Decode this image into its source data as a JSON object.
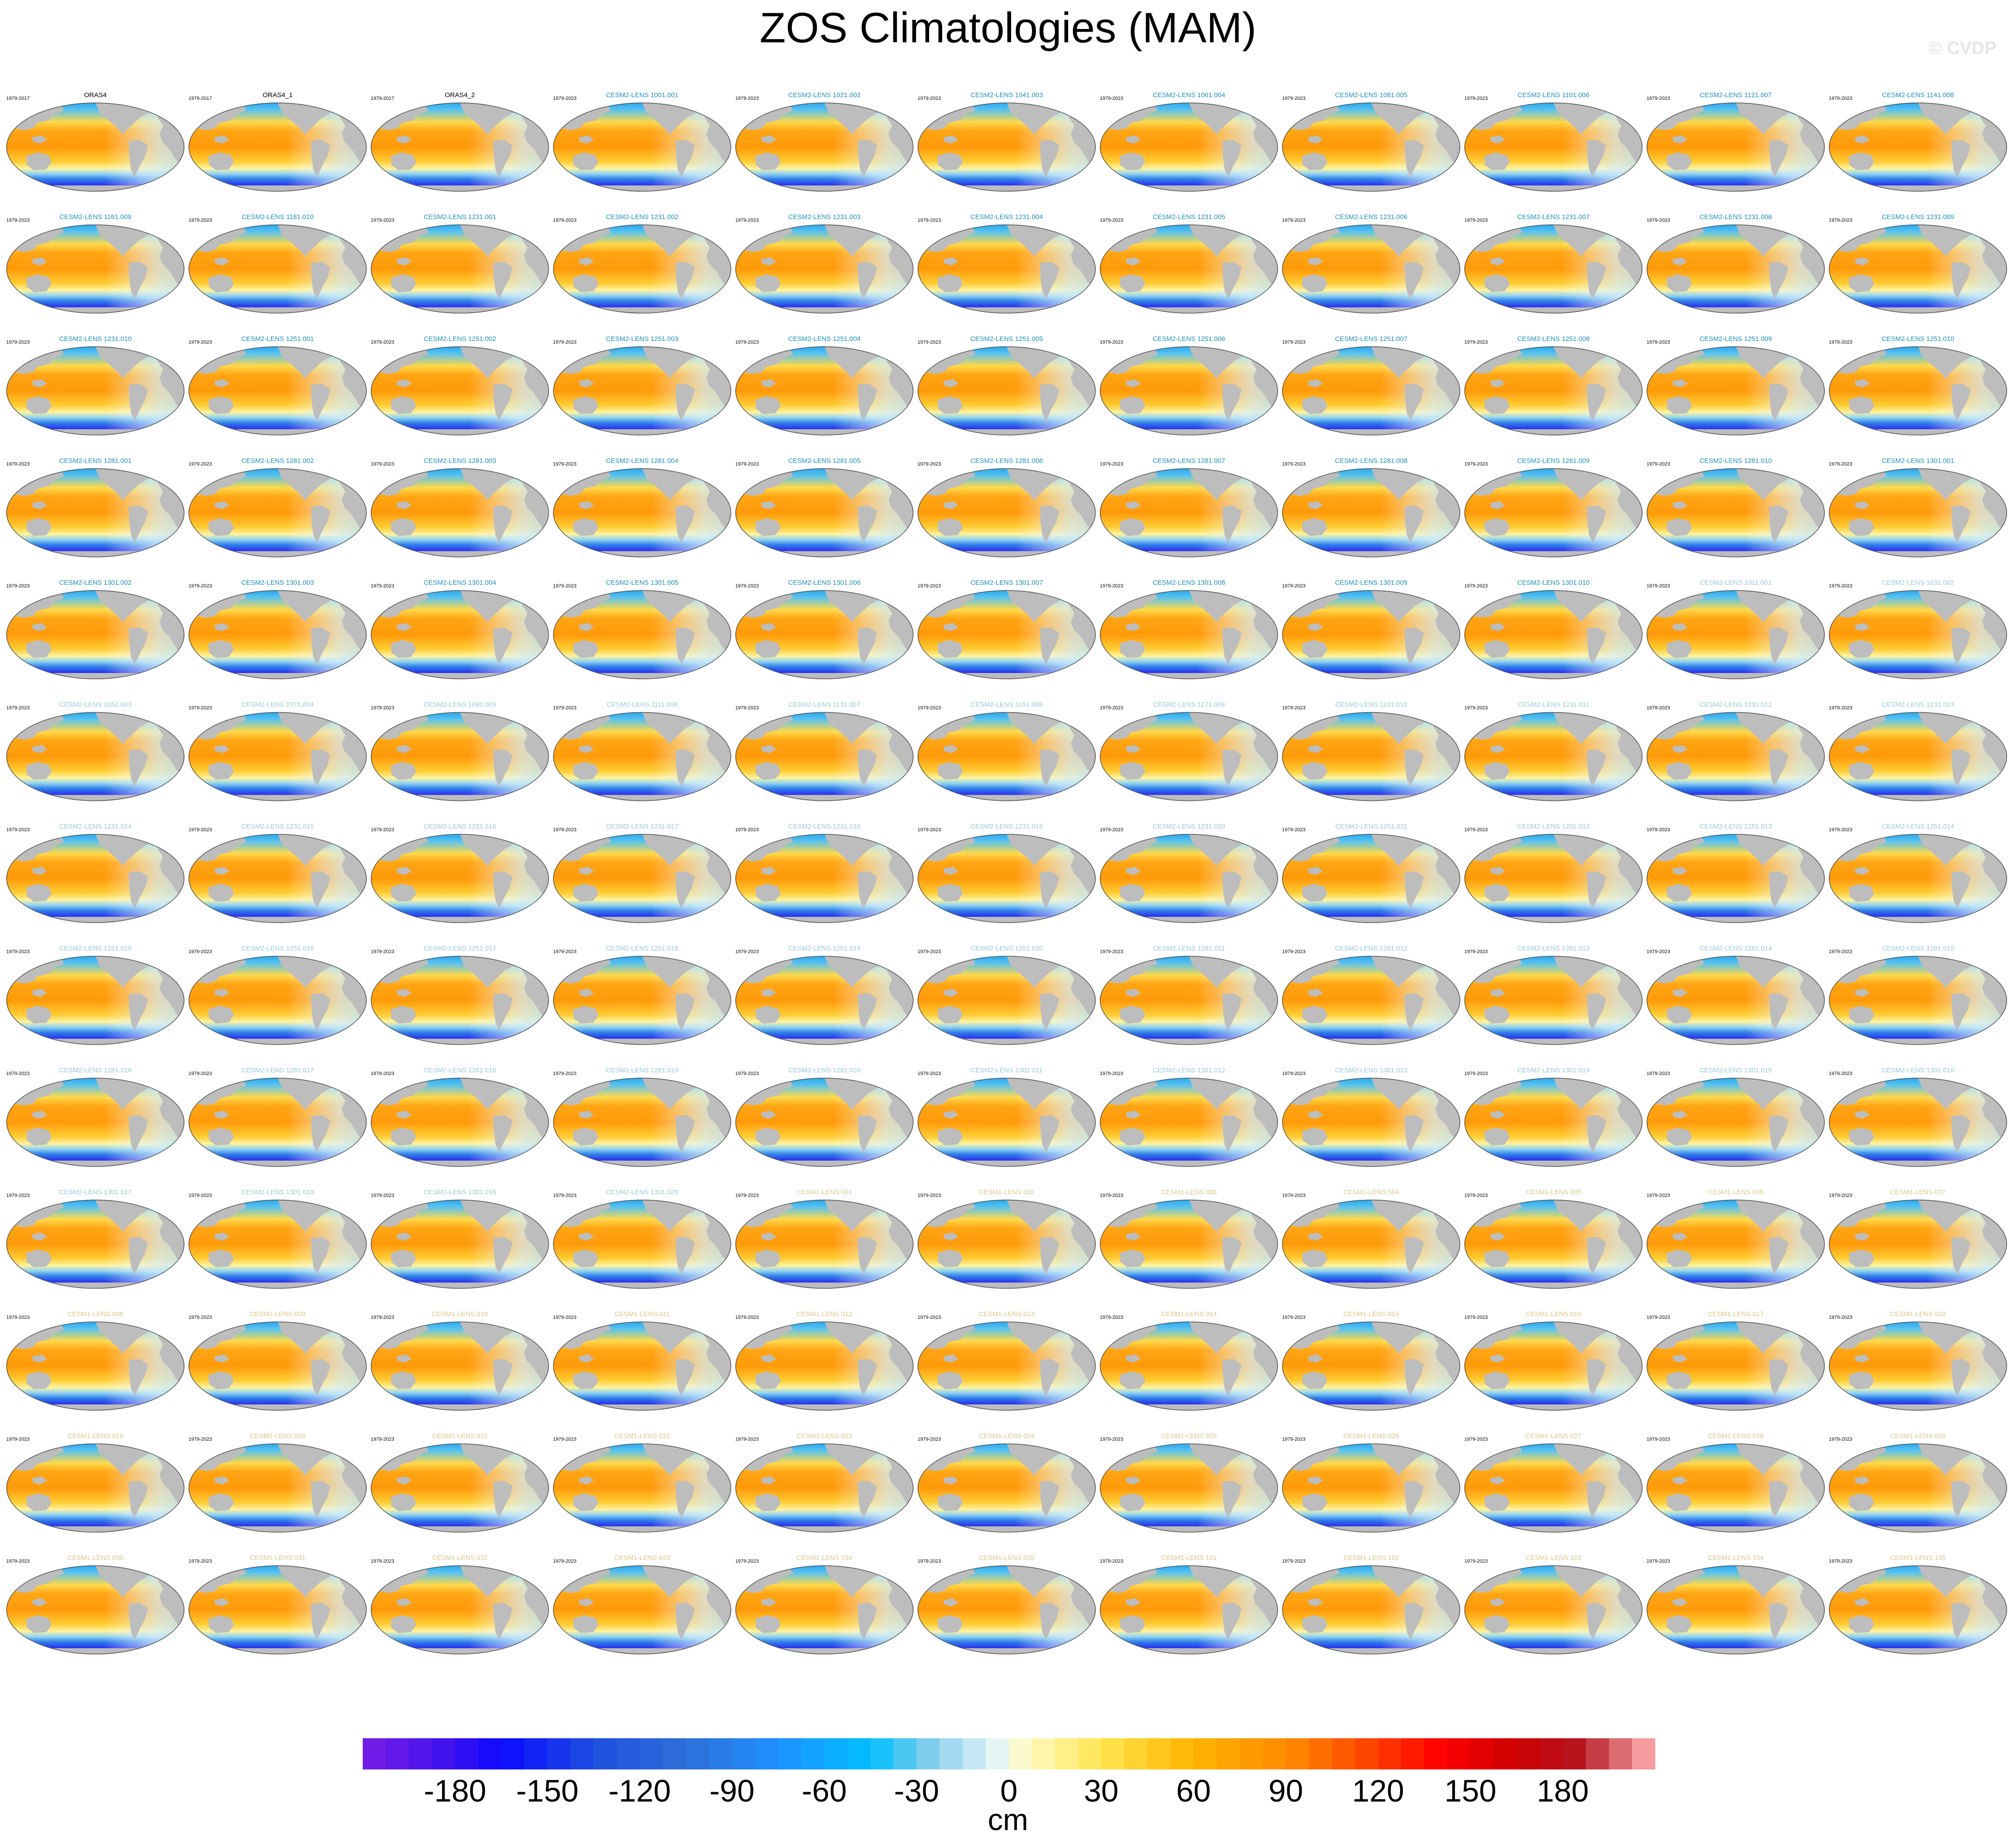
{
  "title": "ZOS Climatologies (MAM)",
  "watermark": "© CVDP",
  "colors": {
    "land": "#bdbdbd",
    "title_obs": "#000000",
    "title_cesm2_dark": "#1f8fbf",
    "title_cesm2_light": "#9ac8d8",
    "title_cesm1": "#d9c88a"
  },
  "chart_data": {
    "type": "heatmap",
    "variable": "ZOS",
    "season": "MAM",
    "panels": [
      {
        "name": "ORAS4",
        "years": "1979-2017"
      },
      {
        "name": "ORAS4_1",
        "years": "1979-2017"
      },
      {
        "name": "ORAS4_2",
        "years": "1979-2017"
      },
      {
        "name": "CESM2-LENS 1001.001",
        "years": "1979-2023"
      },
      {
        "name": "CESM2-LENS 1021.002",
        "years": "1979-2023"
      },
      {
        "name": "CESM2-LENS 1041.003",
        "years": "1979-2023"
      },
      {
        "name": "CESM2-LENS 1061.004",
        "years": "1979-2023"
      },
      {
        "name": "CESM2-LENS 1081.005",
        "years": "1979-2023"
      },
      {
        "name": "CESM2-LENS 1101.006",
        "years": "1979-2023"
      },
      {
        "name": "CESM2-LENS 1121.007",
        "years": "1979-2023"
      },
      {
        "name": "CESM2-LENS 1141.008",
        "years": "1979-2023"
      },
      {
        "name": "CESM2-LENS 1161.009",
        "years": "1979-2023"
      },
      {
        "name": "CESM2-LENS 1181.010",
        "years": "1979-2023"
      },
      {
        "name": "CESM2-LENS 1231.001",
        "years": "1979-2023"
      },
      {
        "name": "CESM2-LENS 1231.002",
        "years": "1979-2023"
      },
      {
        "name": "CESM2-LENS 1231.003",
        "years": "1979-2023"
      },
      {
        "name": "CESM2-LENS 1231.004",
        "years": "1979-2023"
      },
      {
        "name": "CESM2-LENS 1231.005",
        "years": "1979-2023"
      },
      {
        "name": "CESM2-LENS 1231.006",
        "years": "1979-2023"
      },
      {
        "name": "CESM2-LENS 1231.007",
        "years": "1979-2023"
      },
      {
        "name": "CESM2-LENS 1231.008",
        "years": "1979-2023"
      },
      {
        "name": "CESM2-LENS 1231.009",
        "years": "1979-2023"
      },
      {
        "name": "CESM2-LENS 1231.010",
        "years": "1979-2023"
      },
      {
        "name": "CESM2-LENS 1251.001",
        "years": "1979-2023"
      },
      {
        "name": "CESM2-LENS 1251.002",
        "years": "1979-2023"
      },
      {
        "name": "CESM2-LENS 1251.003",
        "years": "1979-2023"
      },
      {
        "name": "CESM2-LENS 1251.004",
        "years": "1979-2023"
      },
      {
        "name": "CESM2-LENS 1251.005",
        "years": "1979-2023"
      },
      {
        "name": "CESM2-LENS 1251.006",
        "years": "1979-2023"
      },
      {
        "name": "CESM2-LENS 1251.007",
        "years": "1979-2023"
      },
      {
        "name": "CESM2-LENS 1251.008",
        "years": "1979-2023"
      },
      {
        "name": "CESM2-LENS 1251.009",
        "years": "1979-2023"
      },
      {
        "name": "CESM2-LENS 1251.010",
        "years": "1979-2023"
      },
      {
        "name": "CESM2-LENS 1281.001",
        "years": "1979-2023"
      },
      {
        "name": "CESM2-LENS 1281.002",
        "years": "1979-2023"
      },
      {
        "name": "CESM2-LENS 1281.003",
        "years": "1979-2023"
      },
      {
        "name": "CESM2-LENS 1281.004",
        "years": "1979-2023"
      },
      {
        "name": "CESM2-LENS 1281.005",
        "years": "1979-2023"
      },
      {
        "name": "CESM2-LENS 1281.006",
        "years": "1979-2023"
      },
      {
        "name": "CESM2-LENS 1281.007",
        "years": "1979-2023"
      },
      {
        "name": "CESM2-LENS 1281.008",
        "years": "1979-2023"
      },
      {
        "name": "CESM2-LENS 1281.009",
        "years": "1979-2023"
      },
      {
        "name": "CESM2-LENS 1281.010",
        "years": "1979-2023"
      },
      {
        "name": "CESM2-LENS 1301.001",
        "years": "1979-2023"
      },
      {
        "name": "CESM2-LENS 1301.002",
        "years": "1979-2023"
      },
      {
        "name": "CESM2-LENS 1301.003",
        "years": "1979-2023"
      },
      {
        "name": "CESM2-LENS 1301.004",
        "years": "1979-2023"
      },
      {
        "name": "CESM2-LENS 1301.005",
        "years": "1979-2023"
      },
      {
        "name": "CESM2-LENS 1301.006",
        "years": "1979-2023"
      },
      {
        "name": "CESM2-LENS 1301.007",
        "years": "1979-2023"
      },
      {
        "name": "CESM2-LENS 1301.008",
        "years": "1979-2023"
      },
      {
        "name": "CESM2-LENS 1301.009",
        "years": "1979-2023"
      },
      {
        "name": "CESM2-LENS 1301.010",
        "years": "1979-2023"
      },
      {
        "name": "CESM2-LENS 1011.001",
        "years": "1979-2023"
      },
      {
        "name": "CESM2-LENS 1031.002",
        "years": "1979-2023"
      },
      {
        "name": "CESM2-LENS 1051.003",
        "years": "1979-2023"
      },
      {
        "name": "CESM2-LENS 1071.004",
        "years": "1979-2023"
      },
      {
        "name": "CESM2-LENS 1091.005",
        "years": "1979-2023"
      },
      {
        "name": "CESM2-LENS 1111.006",
        "years": "1979-2023"
      },
      {
        "name": "CESM2-LENS 1131.007",
        "years": "1979-2023"
      },
      {
        "name": "CESM2-LENS 1151.008",
        "years": "1979-2023"
      },
      {
        "name": "CESM2-LENS 1171.009",
        "years": "1979-2023"
      },
      {
        "name": "CESM2-LENS 1191.010",
        "years": "1979-2023"
      },
      {
        "name": "CESM2-LENS 1231.011",
        "years": "1979-2023"
      },
      {
        "name": "CESM2-LENS 1231.012",
        "years": "1979-2023"
      },
      {
        "name": "CESM2-LENS 1231.013",
        "years": "1979-2023"
      },
      {
        "name": "CESM2-LENS 1231.014",
        "years": "1979-2023"
      },
      {
        "name": "CESM2-LENS 1231.015",
        "years": "1979-2023"
      },
      {
        "name": "CESM2-LENS 1231.016",
        "years": "1979-2023"
      },
      {
        "name": "CESM2-LENS 1231.017",
        "years": "1979-2023"
      },
      {
        "name": "CESM2-LENS 1231.018",
        "years": "1979-2023"
      },
      {
        "name": "CESM2-LENS 1231.019",
        "years": "1979-2023"
      },
      {
        "name": "CESM2-LENS 1231.020",
        "years": "1979-2023"
      },
      {
        "name": "CESM2-LENS 1251.011",
        "years": "1979-2023"
      },
      {
        "name": "CESM2-LENS 1251.012",
        "years": "1979-2023"
      },
      {
        "name": "CESM2-LENS 1251.013",
        "years": "1979-2023"
      },
      {
        "name": "CESM2-LENS 1251.014",
        "years": "1979-2023"
      },
      {
        "name": "CESM2-LENS 1251.015",
        "years": "1979-2023"
      },
      {
        "name": "CESM2-LENS 1251.016",
        "years": "1979-2023"
      },
      {
        "name": "CESM2-LENS 1251.017",
        "years": "1979-2023"
      },
      {
        "name": "CESM2-LENS 1251.018",
        "years": "1979-2023"
      },
      {
        "name": "CESM2-LENS 1251.019",
        "years": "1979-2023"
      },
      {
        "name": "CESM2-LENS 1251.020",
        "years": "1979-2023"
      },
      {
        "name": "CESM2-LENS 1281.011",
        "years": "1979-2023"
      },
      {
        "name": "CESM2-LENS 1281.012",
        "years": "1979-2023"
      },
      {
        "name": "CESM2-LENS 1281.013",
        "years": "1979-2023"
      },
      {
        "name": "CESM2-LENS 1281.014",
        "years": "1979-2023"
      },
      {
        "name": "CESM2-LENS 1281.015",
        "years": "1979-2023"
      },
      {
        "name": "CESM2-LENS 1281.016",
        "years": "1979-2023"
      },
      {
        "name": "CESM2-LENS 1281.017",
        "years": "1979-2023"
      },
      {
        "name": "CESM2-LENS 1281.018",
        "years": "1979-2023"
      },
      {
        "name": "CESM2-LENS 1281.019",
        "years": "1979-2023"
      },
      {
        "name": "CESM2-LENS 1281.020",
        "years": "1979-2023"
      },
      {
        "name": "CESM2-LENS 1301.011",
        "years": "1979-2023"
      },
      {
        "name": "CESM2-LENS 1301.012",
        "years": "1979-2023"
      },
      {
        "name": "CESM2-LENS 1301.013",
        "years": "1979-2023"
      },
      {
        "name": "CESM2-LENS 1301.014",
        "years": "1979-2023"
      },
      {
        "name": "CESM2-LENS 1301.015",
        "years": "1979-2023"
      },
      {
        "name": "CESM2-LENS 1301.016",
        "years": "1979-2023"
      },
      {
        "name": "CESM2-LENS 1301.017",
        "years": "1979-2023"
      },
      {
        "name": "CESM2-LENS 1301.018",
        "years": "1979-2023"
      },
      {
        "name": "CESM2-LENS 1301.019",
        "years": "1979-2023"
      },
      {
        "name": "CESM2-LENS 1301.020",
        "years": "1979-2023"
      },
      {
        "name": "CESM1-LENS 001",
        "years": "1979-2023"
      },
      {
        "name": "CESM1-LENS 002",
        "years": "1979-2023"
      },
      {
        "name": "CESM1-LENS 003",
        "years": "1979-2023"
      },
      {
        "name": "CESM1-LENS 004",
        "years": "1979-2023"
      },
      {
        "name": "CESM1-LENS 005",
        "years": "1979-2023"
      },
      {
        "name": "CESM1-LENS 006",
        "years": "1979-2023"
      },
      {
        "name": "CESM1-LENS 007",
        "years": "1979-2023"
      },
      {
        "name": "CESM1-LENS 008",
        "years": "1979-2023"
      },
      {
        "name": "CESM1-LENS 009",
        "years": "1979-2023"
      },
      {
        "name": "CESM1-LENS 010",
        "years": "1979-2023"
      },
      {
        "name": "CESM1-LENS 011",
        "years": "1979-2023"
      },
      {
        "name": "CESM1-LENS 012",
        "years": "1979-2023"
      },
      {
        "name": "CESM1-LENS 013",
        "years": "1979-2023"
      },
      {
        "name": "CESM1-LENS 014",
        "years": "1979-2023"
      },
      {
        "name": "CESM1-LENS 015",
        "years": "1979-2023"
      },
      {
        "name": "CESM1-LENS 016",
        "years": "1979-2023"
      },
      {
        "name": "CESM1-LENS 017",
        "years": "1979-2023"
      },
      {
        "name": "CESM1-LENS 018",
        "years": "1979-2023"
      },
      {
        "name": "CESM1-LENS 019",
        "years": "1979-2023"
      },
      {
        "name": "CESM1-LENS 020",
        "years": "1979-2023"
      },
      {
        "name": "CESM1-LENS 021",
        "years": "1979-2023"
      },
      {
        "name": "CESM1-LENS 022",
        "years": "1979-2023"
      },
      {
        "name": "CESM1-LENS 023",
        "years": "1979-2023"
      },
      {
        "name": "CESM1-LENS 024",
        "years": "1979-2023"
      },
      {
        "name": "CESM1-LENS 025",
        "years": "1979-2023"
      },
      {
        "name": "CESM1-LENS 026",
        "years": "1979-2023"
      },
      {
        "name": "CESM1-LENS 027",
        "years": "1979-2023"
      },
      {
        "name": "CESM1-LENS 028",
        "years": "1979-2023"
      },
      {
        "name": "CESM1-LENS 029",
        "years": "1979-2023"
      },
      {
        "name": "CESM1-LENS 030",
        "years": "1979-2023"
      },
      {
        "name": "CESM1-LENS 031",
        "years": "1979-2023"
      },
      {
        "name": "CESM1-LENS 032",
        "years": "1979-2023"
      },
      {
        "name": "CESM1-LENS 033",
        "years": "1979-2023"
      },
      {
        "name": "CESM1-LENS 034",
        "years": "1979-2023"
      },
      {
        "name": "CESM1-LENS 035",
        "years": "1979-2023"
      },
      {
        "name": "CESM1-LENS 101",
        "years": "1979-2023"
      },
      {
        "name": "CESM1-LENS 102",
        "years": "1979-2023"
      },
      {
        "name": "CESM1-LENS 103",
        "years": "1979-2023"
      },
      {
        "name": "CESM1-LENS 104",
        "years": "1979-2023"
      },
      {
        "name": "CESM1-LENS 105",
        "years": "1979-2023"
      }
    ],
    "colorbar": {
      "units": "cm",
      "range": [
        -210,
        210
      ],
      "ticks": [
        -180,
        -150,
        -120,
        -90,
        -60,
        -30,
        0,
        30,
        60,
        90,
        120,
        150,
        180
      ],
      "tick_labels": [
        "-180",
        "-150",
        "-120",
        "-90",
        "-60",
        "-30",
        "0",
        "30",
        "60",
        "90",
        "120",
        "150",
        "180"
      ],
      "color_stops": [
        {
          "value": -210,
          "color": "#7a1ee6"
        },
        {
          "value": -180,
          "color": "#3a10f0"
        },
        {
          "value": -165,
          "color": "#0a0aff"
        },
        {
          "value": -135,
          "color": "#1f4fe0"
        },
        {
          "value": -105,
          "color": "#2f6fd8"
        },
        {
          "value": -75,
          "color": "#1e90ff"
        },
        {
          "value": -45,
          "color": "#00bfff"
        },
        {
          "value": -25,
          "color": "#87ceeb"
        },
        {
          "value": -5,
          "color": "#e0f4fa"
        },
        {
          "value": 5,
          "color": "#fffac8"
        },
        {
          "value": 30,
          "color": "#ffe650"
        },
        {
          "value": 60,
          "color": "#ffb400"
        },
        {
          "value": 90,
          "color": "#ff8c00"
        },
        {
          "value": 120,
          "color": "#ff3c00"
        },
        {
          "value": 140,
          "color": "#ff0000"
        },
        {
          "value": 165,
          "color": "#cc0000"
        },
        {
          "value": 185,
          "color": "#b4141e"
        },
        {
          "value": 210,
          "color": "#ffb4b4"
        }
      ]
    }
  }
}
